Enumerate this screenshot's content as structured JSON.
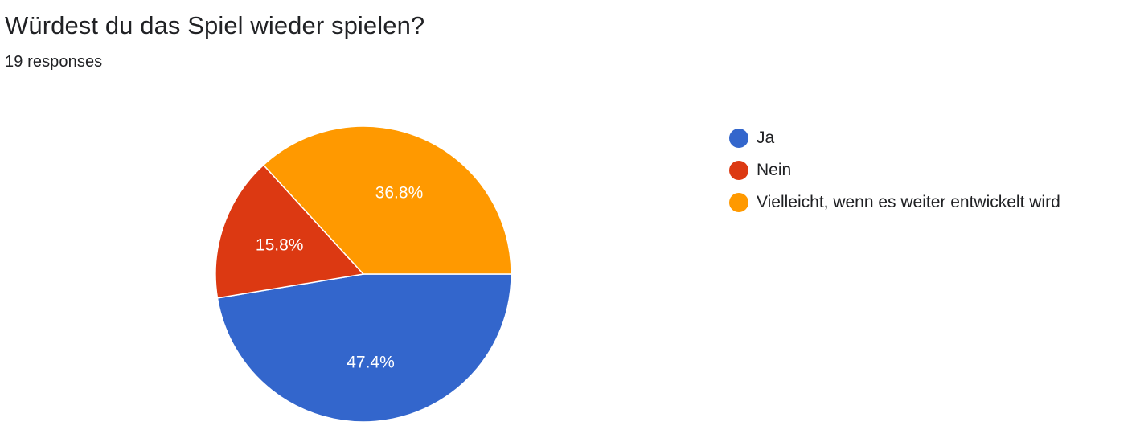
{
  "header": {
    "title": "Würdest du das Spiel wieder spielen?",
    "subtitle": "19 responses"
  },
  "chart_data": {
    "type": "pie",
    "title": "Würdest du das Spiel wieder spielen?",
    "categories": [
      "Ja",
      "Nein",
      "Vielleicht, wenn es weiter entwickelt wird"
    ],
    "values": [
      47.4,
      15.8,
      36.8
    ],
    "labels": [
      "47.4%",
      "15.8%",
      "36.8%"
    ],
    "colors": [
      "#3366cc",
      "#dc3912",
      "#ff9900"
    ],
    "legend": "right"
  }
}
